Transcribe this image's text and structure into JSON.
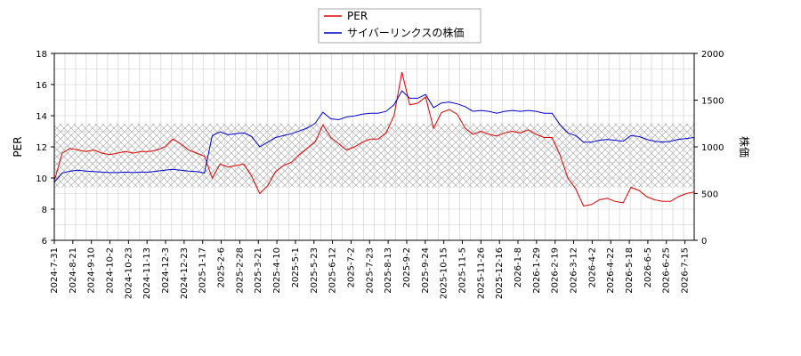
{
  "chart_data": {
    "type": "line",
    "title": "",
    "legend": {
      "placement": "top-center",
      "entries": [
        "PER",
        "サイバーリンクスの株価"
      ]
    },
    "grid": true,
    "band": {
      "label": "",
      "y_left_range": [
        9.4,
        13.5
      ],
      "pattern": "crosshatch"
    },
    "x_ticks": [
      "2024-7-31",
      "2024-8-21",
      "2024-9-10",
      "2024-10-2",
      "2024-10-23",
      "2024-11-13",
      "2024-12-3",
      "2024-12-23",
      "2025-1-17",
      "2025-2-6",
      "2025-2-28",
      "2025-3-21",
      "2025-4-10",
      "2025-5-1",
      "2025-5-23",
      "2025-6-12",
      "2025-7-2",
      "2025-7-23",
      "2025-8-13",
      "2025-9-2",
      "2025-9-24",
      "2025-10-15",
      "2025-11-5",
      "2025-11-26",
      "2025-12-16",
      "2026-1-8",
      "2026-1-29",
      "2026-2-19",
      "2026-3-12",
      "2026-4-2",
      "2026-4-22",
      "2026-5-18",
      "2026-6-5",
      "2026-6-25",
      "2026-7-15"
    ],
    "y_left": {
      "label": "PER",
      "range": [
        6,
        18
      ],
      "ticks": [
        "6",
        "8",
        "10",
        "12",
        "14",
        "16",
        "18"
      ]
    },
    "y_right": {
      "label": "株価",
      "range": [
        0,
        2000
      ],
      "ticks": [
        "0",
        "500",
        "1000",
        "1500",
        "2000"
      ]
    },
    "series": [
      {
        "name": "PER",
        "axis": "left",
        "color": "#dd0000",
        "values": [
          9.8,
          11.6,
          11.9,
          11.8,
          11.7,
          11.8,
          11.6,
          11.5,
          11.6,
          11.7,
          11.6,
          11.7,
          11.7,
          11.8,
          12.0,
          12.5,
          12.2,
          11.8,
          11.6,
          11.4,
          10.0,
          10.9,
          10.7,
          10.8,
          10.9,
          10.1,
          9.0,
          9.5,
          10.4,
          10.8,
          11.0,
          11.5,
          11.9,
          12.3,
          13.4,
          12.6,
          12.2,
          11.8,
          12.0,
          12.3,
          12.5,
          12.5,
          12.9,
          14.0,
          16.8,
          14.7,
          14.8,
          15.2,
          13.2,
          14.2,
          14.4,
          14.1,
          13.2,
          12.8,
          13.0,
          12.8,
          12.7,
          12.9,
          13.0,
          12.9,
          13.1,
          12.8,
          12.6,
          12.6,
          11.5,
          10.0,
          9.3,
          8.2,
          8.3,
          8.6,
          8.7,
          8.5,
          8.4,
          9.4,
          9.2,
          8.8,
          8.6,
          8.5,
          8.5,
          8.8,
          9.0,
          9.1
        ]
      },
      {
        "name": "サイバーリンクスの株価",
        "axis": "right",
        "color": "#0000cc",
        "values": [
          620,
          720,
          740,
          750,
          740,
          735,
          730,
          725,
          725,
          730,
          725,
          730,
          730,
          740,
          750,
          760,
          750,
          740,
          735,
          720,
          1120,
          1160,
          1130,
          1140,
          1150,
          1110,
          1000,
          1050,
          1100,
          1120,
          1140,
          1170,
          1200,
          1250,
          1370,
          1300,
          1290,
          1320,
          1330,
          1350,
          1360,
          1360,
          1380,
          1450,
          1600,
          1520,
          1520,
          1560,
          1420,
          1470,
          1480,
          1460,
          1430,
          1380,
          1390,
          1380,
          1360,
          1380,
          1390,
          1380,
          1390,
          1380,
          1360,
          1360,
          1240,
          1150,
          1120,
          1050,
          1050,
          1070,
          1080,
          1070,
          1060,
          1120,
          1110,
          1080,
          1060,
          1050,
          1060,
          1080,
          1090,
          1100
        ]
      }
    ]
  }
}
